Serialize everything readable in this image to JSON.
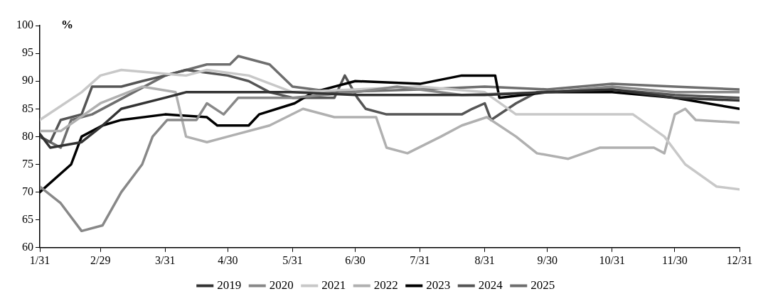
{
  "chart_data": {
    "type": "line",
    "ylabel": "%",
    "xlim": [
      "--01-31",
      "--12-31"
    ],
    "ylim": [
      60,
      100
    ],
    "yticks": [
      60,
      65,
      70,
      75,
      80,
      85,
      90,
      95,
      100
    ],
    "xticks": [
      {
        "value": "--01-31",
        "label": "1/31"
      },
      {
        "value": "--02-29",
        "label": "2/29"
      },
      {
        "value": "--03-31",
        "label": "3/31"
      },
      {
        "value": "--04-30",
        "label": "4/30"
      },
      {
        "value": "--05-31",
        "label": "5/31"
      },
      {
        "value": "--06-30",
        "label": "6/30"
      },
      {
        "value": "--07-31",
        "label": "7/31"
      },
      {
        "value": "--08-31",
        "label": "8/31"
      },
      {
        "value": "--09-30",
        "label": "9/30"
      },
      {
        "value": "--10-31",
        "label": "10/31"
      },
      {
        "value": "--11-30",
        "label": "11/30"
      },
      {
        "value": "--12-31",
        "label": "12/31"
      }
    ],
    "grid": false,
    "legend": "bottom",
    "marker": "none",
    "line_style": "solid",
    "series": [
      {
        "name": "2019",
        "color": "#333333",
        "x": [
          "--01-31",
          "--02-05",
          "--02-20",
          "--03-01",
          "--03-10",
          "--03-31",
          "--04-10",
          "--05-31",
          "--06-30",
          "--07-31",
          "--08-31",
          "--09-30",
          "--10-31",
          "--11-30",
          "--12-31"
        ],
        "values": [
          80.5,
          78,
          79,
          82,
          85,
          87,
          88,
          88,
          87.5,
          87.5,
          87.5,
          88,
          88.5,
          87,
          86.5
        ]
      },
      {
        "name": "2020",
        "color": "#888888",
        "x": [
          "--01-31",
          "--02-10",
          "--02-20",
          "--03-01",
          "--03-10",
          "--03-20",
          "--03-25",
          "--04-01",
          "--04-15",
          "--04-20",
          "--04-28",
          "--05-05",
          "--05-31",
          "--06-30",
          "--07-20",
          "--08-20",
          "--09-30",
          "--10-31",
          "--11-30",
          "--12-31"
        ],
        "values": [
          71,
          68,
          63,
          64,
          70,
          75,
          80,
          83,
          83,
          86,
          84,
          87,
          87,
          88,
          89,
          87.5,
          88,
          89,
          88,
          88
        ]
      },
      {
        "name": "2021",
        "color": "#c8c8c8",
        "x": [
          "--01-31",
          "--02-20",
          "--02-29",
          "--03-10",
          "--04-10",
          "--04-20",
          "--05-10",
          "--05-31",
          "--06-30",
          "--07-31",
          "--08-31",
          "--09-15",
          "--11-10",
          "--11-25",
          "--12-05",
          "--12-20",
          "--12-31"
        ],
        "values": [
          83,
          88,
          91,
          92,
          91,
          92,
          91,
          88,
          88.5,
          89,
          88,
          84,
          84,
          80,
          75,
          71,
          70.5
        ]
      },
      {
        "name": "2022",
        "color": "#b0b0b0",
        "x": [
          "--01-31",
          "--02-10",
          "--02-29",
          "--03-20",
          "--04-05",
          "--04-10",
          "--04-20",
          "--04-30",
          "--05-20",
          "--06-05",
          "--06-20",
          "--07-10",
          "--07-15",
          "--07-25",
          "--08-10",
          "--08-20",
          "--09-01",
          "--09-15",
          "--09-25",
          "--10-10",
          "--10-25",
          "--11-20",
          "--11-25",
          "--11-30",
          "--12-05",
          "--12-10",
          "--12-31"
        ],
        "values": [
          81,
          81,
          86,
          89,
          88,
          80,
          79,
          80,
          82,
          85,
          83.5,
          83.5,
          78,
          77,
          80,
          82,
          83.5,
          80,
          77,
          76,
          78,
          78,
          77,
          84,
          85,
          83,
          82.5
        ]
      },
      {
        "name": "2023",
        "color": "#000000",
        "x": [
          "--01-31",
          "--02-15",
          "--02-20",
          "--03-01",
          "--03-10",
          "--03-31",
          "--04-20",
          "--04-25",
          "--05-10",
          "--05-15",
          "--06-01",
          "--06-10",
          "--06-30",
          "--07-31",
          "--08-20",
          "--09-05",
          "--09-07",
          "--09-30",
          "--10-31",
          "--11-30",
          "--12-31"
        ],
        "values": [
          70,
          75,
          80,
          82,
          83,
          84,
          83.5,
          82,
          82,
          84,
          86,
          88,
          90,
          89.5,
          91,
          91,
          87,
          88,
          88,
          87,
          85
        ]
      },
      {
        "name": "2024",
        "color": "#555555",
        "x": [
          "--01-31",
          "--02-05",
          "--02-10",
          "--02-20",
          "--02-25",
          "--03-10",
          "--03-20",
          "--03-31",
          "--04-10",
          "--04-30",
          "--05-10",
          "--05-20",
          "--05-31",
          "--06-20",
          "--06-25",
          "--07-01",
          "--07-05",
          "--07-15",
          "--08-20",
          "--08-25",
          "--08-31",
          "--09-03",
          "--09-15",
          "--09-25",
          "--10-31",
          "--11-30",
          "--12-31"
        ],
        "values": [
          80,
          79,
          83,
          84,
          89,
          89,
          90,
          91,
          92,
          91,
          90,
          88,
          87,
          87,
          91,
          87,
          85,
          84,
          84,
          85,
          86,
          83,
          86,
          88,
          88.5,
          87.5,
          87
        ]
      },
      {
        "name": "2025",
        "color": "#6e6e6e",
        "x": [
          "--01-31",
          "--02-10",
          "--02-15",
          "--02-25",
          "--03-31",
          "--04-20",
          "--05-01",
          "--05-05",
          "--05-20",
          "--05-31",
          "--06-20",
          "--07-31",
          "--08-31",
          "--09-30",
          "--10-31",
          "--11-30",
          "--12-31"
        ],
        "values": [
          80,
          78,
          83,
          84,
          91,
          93,
          93,
          94.5,
          93,
          89,
          88,
          88.5,
          89,
          88.5,
          89.5,
          89,
          88.5
        ]
      }
    ]
  }
}
